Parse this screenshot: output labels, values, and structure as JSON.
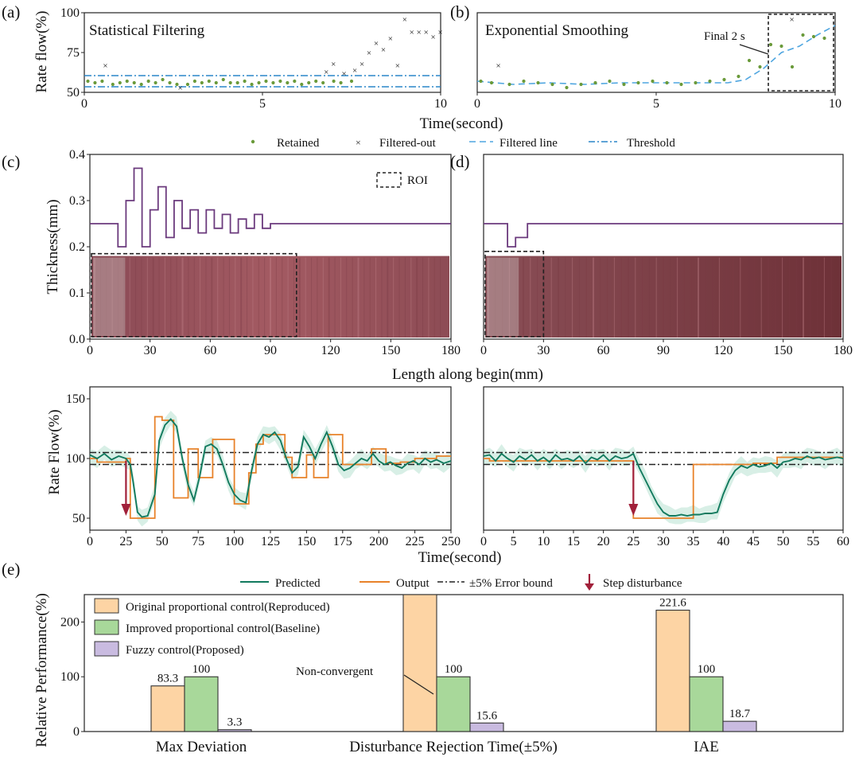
{
  "colors": {
    "retained": "#6a9a3a",
    "filtered_out": "#cc3333",
    "filtered_line": "#4fa6e0",
    "threshold": "#2a86c8",
    "thickness_line": "#6b3a7d",
    "strip": "#9b5058",
    "predicted": "#127a5e",
    "predicted_band": "#8fd0b8",
    "output": "#e8822a",
    "bound": "#222222",
    "disturbance": "#a1203a",
    "bar_original": "#fdd4a4",
    "bar_improved": "#a8d89a",
    "bar_fuzzy": "#c9bbe0"
  },
  "panel_labels": {
    "a": "(a)",
    "b": "(b)",
    "c": "(c)",
    "d": "(d)",
    "e": "(e)"
  },
  "top": {
    "ylabel": "Rate flow(%)",
    "xlabel": "Time(second)",
    "title_a": "Statistical Filtering",
    "title_b": "Exponential Smoothing",
    "annotation_b": "Final 2 s",
    "legend": [
      "Retained",
      "Filtered-out",
      "Filtered line",
      "Threshold"
    ]
  },
  "middle": {
    "ylabel": "Thickness(mm)",
    "xlabel": "Length along begin(mm)",
    "roi_label": "ROI"
  },
  "lower": {
    "ylabel": "Rate Flow(%)",
    "xlabel": "Time(second)",
    "legend": [
      "Predicted",
      "Output",
      "±5% Error bound",
      "Step disturbance"
    ]
  },
  "bottom": {
    "ylabel": "Relative Performance(%)",
    "annotation": "Non-convergent"
  },
  "chart_data": [
    {
      "id": "a",
      "type": "scatter",
      "title": "Statistical Filtering",
      "xlabel": "Time(second)",
      "ylabel": "Rate flow(%)",
      "xlim": [
        0,
        10
      ],
      "ylim": [
        50,
        100
      ],
      "xticks": [
        0,
        5,
        10
      ],
      "yticks": [
        50,
        75,
        100
      ],
      "series": [
        {
          "name": "Retained",
          "x": [
            0.1,
            0.3,
            0.5,
            0.8,
            1.0,
            1.2,
            1.4,
            1.6,
            1.8,
            2.0,
            2.2,
            2.4,
            2.6,
            2.9,
            3.1,
            3.3,
            3.5,
            3.7,
            3.9,
            4.1,
            4.3,
            4.5,
            4.7,
            4.9,
            5.1,
            5.3,
            5.5,
            5.7,
            5.9,
            6.1,
            6.3,
            6.5,
            6.7,
            7.0,
            7.2,
            7.5
          ],
          "y": [
            57,
            56,
            57,
            55,
            56,
            57,
            56,
            55,
            57,
            56,
            58,
            56,
            55,
            55,
            57,
            56,
            57,
            56,
            58,
            56,
            56,
            57,
            55,
            56,
            57,
            56,
            57,
            56,
            57,
            55,
            56,
            57,
            56,
            57,
            56,
            57
          ]
        },
        {
          "name": "Filtered-out",
          "x": [
            0.6,
            2.7,
            6.8,
            7.0,
            7.3,
            7.6,
            7.8,
            8.0,
            8.2,
            8.4,
            8.6,
            8.8,
            9.0,
            9.2,
            9.4,
            9.6,
            9.8,
            10.0
          ],
          "y": [
            67,
            53,
            63,
            68,
            62,
            64,
            68,
            75,
            81,
            77,
            84,
            67,
            96,
            88,
            88,
            88,
            85,
            88
          ]
        },
        {
          "name": "Threshold",
          "x": [
            0,
            10
          ],
          "y": [
            60.5,
            53.5
          ]
        }
      ]
    },
    {
      "id": "b",
      "type": "scatter",
      "title": "Exponential Smoothing",
      "xlabel": "Time(second)",
      "xlim": [
        0,
        10
      ],
      "ylim": [
        50,
        100
      ],
      "xticks": [
        0,
        5,
        10
      ],
      "series": [
        {
          "name": "Retained",
          "x": [
            0.1,
            0.4,
            0.9,
            1.3,
            1.7,
            2.1,
            2.5,
            2.9,
            3.3,
            3.7,
            4.1,
            4.5,
            4.9,
            5.3,
            5.7,
            6.1,
            6.5,
            6.9,
            7.3,
            7.6,
            7.9,
            8.2,
            8.5,
            8.8,
            9.1,
            9.4,
            9.7
          ],
          "y": [
            57,
            56,
            55,
            57,
            56,
            55,
            53,
            55,
            56,
            57,
            55,
            56,
            57,
            56,
            55,
            56,
            57,
            58,
            60,
            70,
            66,
            80,
            79,
            66,
            86,
            85,
            84
          ]
        },
        {
          "name": "Filtered-out",
          "x": [
            0.6,
            8.8
          ],
          "y": [
            67,
            96
          ]
        },
        {
          "name": "Filtered line",
          "x": [
            0,
            1,
            2,
            3,
            4,
            5,
            6,
            7,
            7.5,
            8,
            8.5,
            9,
            9.5,
            10
          ],
          "y": [
            57,
            55,
            56,
            55,
            56,
            56,
            56,
            56,
            58,
            65,
            75,
            79,
            86,
            92
          ]
        }
      ]
    },
    {
      "id": "c",
      "type": "line",
      "xlabel": "Length along begin(mm)",
      "ylabel": "Thickness(mm)",
      "xlim": [
        0,
        180
      ],
      "ylim": [
        0,
        0.4
      ],
      "xticks": [
        0,
        30,
        60,
        90,
        120,
        150,
        180
      ],
      "yticks": [
        0.0,
        0.1,
        0.2,
        0.3,
        0.4
      ],
      "series": [
        {
          "name": "",
          "x": [
            0,
            14,
            14,
            18,
            18,
            22,
            22,
            26,
            26,
            30,
            30,
            34,
            34,
            38,
            38,
            42,
            42,
            46,
            46,
            50,
            50,
            54,
            54,
            58,
            58,
            62,
            62,
            66,
            66,
            70,
            70,
            74,
            74,
            78,
            78,
            82,
            82,
            86,
            86,
            90,
            90,
            180
          ],
          "y": [
            0.25,
            0.25,
            0.2,
            0.2,
            0.3,
            0.3,
            0.37,
            0.37,
            0.2,
            0.2,
            0.28,
            0.28,
            0.33,
            0.33,
            0.22,
            0.22,
            0.3,
            0.3,
            0.24,
            0.24,
            0.28,
            0.28,
            0.23,
            0.23,
            0.28,
            0.28,
            0.24,
            0.24,
            0.27,
            0.27,
            0.23,
            0.23,
            0.26,
            0.26,
            0.24,
            0.24,
            0.27,
            0.27,
            0.24,
            0.24,
            0.25,
            0.25
          ]
        }
      ],
      "roi": {
        "x": [
          0,
          103
        ],
        "y": [
          0,
          0.185
        ]
      },
      "strip_top": 0.18
    },
    {
      "id": "d",
      "type": "line",
      "xlim": [
        0,
        180
      ],
      "ylim": [
        0,
        0.4
      ],
      "xticks": [
        0,
        30,
        60,
        90,
        120,
        150,
        180
      ],
      "series": [
        {
          "name": "",
          "x": [
            0,
            12,
            12,
            16,
            16,
            22,
            22,
            180
          ],
          "y": [
            0.25,
            0.25,
            0.2,
            0.2,
            0.22,
            0.22,
            0.25,
            0.25
          ]
        }
      ],
      "roi": {
        "x": [
          0,
          30
        ],
        "y": [
          0,
          0.19
        ]
      },
      "strip_top": 0.18
    },
    {
      "id": "lower-left",
      "type": "line",
      "xlabel": "Time(second)",
      "ylabel": "Rate Flow(%)",
      "xlim": [
        0,
        250
      ],
      "ylim": [
        40,
        160
      ],
      "xticks": [
        0,
        25,
        50,
        75,
        100,
        125,
        150,
        175,
        200,
        225,
        250
      ],
      "yticks": [
        50,
        100,
        150
      ],
      "bounds": [
        105,
        95
      ],
      "disturbance_x": 25,
      "series": [
        {
          "name": "Output",
          "x": [
            0,
            5,
            5,
            25,
            25,
            28,
            28,
            45,
            45,
            50,
            50,
            58,
            58,
            68,
            68,
            75,
            75,
            85,
            85,
            100,
            100,
            110,
            110,
            115,
            115,
            120,
            120,
            135,
            135,
            140,
            140,
            150,
            150,
            155,
            155,
            165,
            165,
            175,
            175,
            185,
            185,
            195,
            195,
            205,
            205,
            215,
            215,
            225,
            225,
            240,
            240,
            250
          ],
          "y": [
            100,
            100,
            97,
            97,
            100,
            100,
            50,
            50,
            135,
            135,
            132,
            132,
            67,
            67,
            108,
            108,
            84,
            84,
            116,
            116,
            62,
            62,
            88,
            88,
            112,
            112,
            120,
            120,
            101,
            101,
            84,
            84,
            103,
            103,
            84,
            84,
            120,
            120,
            95,
            95,
            95,
            95,
            108,
            108,
            96,
            96,
            97,
            97,
            100,
            100,
            102,
            102
          ]
        },
        {
          "name": "Predicted",
          "x": [
            0,
            5,
            10,
            15,
            20,
            25,
            28,
            30,
            33,
            36,
            40,
            45,
            48,
            52,
            56,
            60,
            64,
            68,
            72,
            76,
            80,
            84,
            88,
            92,
            96,
            100,
            104,
            108,
            112,
            116,
            120,
            124,
            128,
            132,
            136,
            140,
            144,
            148,
            152,
            156,
            160,
            164,
            168,
            172,
            176,
            180,
            184,
            188,
            192,
            196,
            200,
            204,
            208,
            212,
            216,
            220,
            224,
            228,
            232,
            236,
            240,
            245,
            250
          ],
          "y": [
            103,
            100,
            104,
            99,
            102,
            100,
            95,
            80,
            55,
            51,
            52,
            70,
            115,
            128,
            133,
            127,
            100,
            78,
            65,
            85,
            110,
            112,
            108,
            95,
            80,
            70,
            65,
            63,
            90,
            112,
            120,
            118,
            122,
            115,
            100,
            88,
            93,
            118,
            110,
            100,
            112,
            122,
            110,
            95,
            90,
            92,
            96,
            100,
            98,
            104,
            98,
            95,
            97,
            94,
            92,
            96,
            98,
            95,
            100,
            97,
            99,
            96,
            98
          ]
        }
      ]
    },
    {
      "id": "lower-right",
      "type": "line",
      "xlim": [
        0,
        60
      ],
      "ylim": [
        40,
        160
      ],
      "xticks": [
        0,
        5,
        10,
        15,
        20,
        25,
        30,
        35,
        40,
        45,
        50,
        55,
        60
      ],
      "bounds": [
        105,
        95
      ],
      "disturbance_x": 25,
      "series": [
        {
          "name": "Output",
          "x": [
            0,
            1,
            1,
            25,
            25,
            35,
            35,
            45,
            45,
            49,
            49,
            60
          ],
          "y": [
            100,
            100,
            98,
            98,
            50,
            50,
            95,
            95,
            96,
            96,
            101,
            101
          ]
        },
        {
          "name": "Predicted",
          "x": [
            0,
            1,
            2,
            3,
            4,
            5,
            6,
            7,
            8,
            9,
            10,
            11,
            12,
            13,
            14,
            15,
            16,
            17,
            18,
            19,
            20,
            21,
            22,
            23,
            24,
            25,
            26,
            27,
            28,
            29,
            30,
            31,
            32,
            33,
            34,
            35,
            36,
            37,
            38,
            39,
            40,
            41,
            42,
            43,
            44,
            45,
            46,
            47,
            48,
            49,
            50,
            51,
            52,
            53,
            54,
            55,
            56,
            57,
            58,
            59,
            60
          ],
          "y": [
            102,
            103,
            98,
            104,
            100,
            97,
            102,
            99,
            103,
            98,
            101,
            97,
            103,
            99,
            100,
            98,
            102,
            96,
            101,
            99,
            103,
            98,
            102,
            100,
            101,
            104,
            92,
            82,
            72,
            62,
            55,
            52,
            52,
            53,
            52,
            53,
            53,
            54,
            54,
            55,
            70,
            82,
            90,
            94,
            92,
            95,
            93,
            94,
            96,
            92,
            97,
            98,
            100,
            99,
            102,
            100,
            101,
            99,
            100,
            101,
            100
          ]
        }
      ]
    },
    {
      "id": "e",
      "type": "bar",
      "ylabel": "Relative Performance(%)",
      "categories": [
        "Max Deviation",
        "Disturbance Rejection Time(±5%)",
        "IAE"
      ],
      "ylim": [
        0,
        250
      ],
      "yticks": [
        0,
        100,
        200
      ],
      "series": [
        {
          "name": "Original proportional control(Reproduced)",
          "values": [
            83.3,
            null,
            221.6
          ],
          "labels": [
            "83.3",
            "",
            "221.6"
          ]
        },
        {
          "name": "Improved proportional control(Baseline)",
          "values": [
            100,
            100,
            100
          ],
          "labels": [
            "100",
            "100",
            "100"
          ]
        },
        {
          "name": "Fuzzy control(Proposed)",
          "values": [
            3.3,
            15.6,
            18.7
          ],
          "labels": [
            "3.3",
            "15.6",
            "18.7"
          ]
        }
      ]
    }
  ]
}
